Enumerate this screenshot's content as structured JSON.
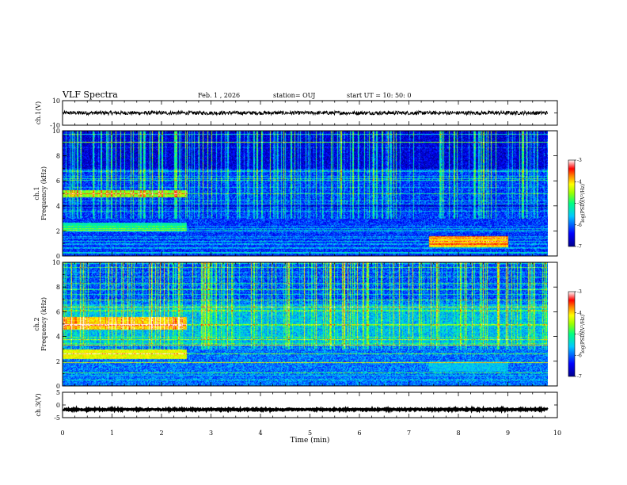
{
  "header": {
    "title": "VLF Spectra",
    "date": "Feb. 1 , 2026",
    "station": "station= OUJ",
    "start": "start UT = 10: 50: 0"
  },
  "colors": {
    "background": "#ffffff",
    "axis": "#000000",
    "trace": "#000000",
    "spectrogram_low": "#00008c",
    "spectrogram_high": "#ff0000"
  },
  "chart_data": [
    {
      "type": "line",
      "panel": "ch1-waveform",
      "ylabel": "ch.1(V)",
      "ylim": [
        -10,
        10
      ],
      "yticks": [
        {
          "value": 10,
          "label": "10"
        },
        {
          "value": 0,
          "label": ""
        },
        {
          "value": -10,
          "label": "-10"
        }
      ],
      "xlim": [
        0,
        10
      ],
      "series": [
        {
          "mean": 0,
          "amplitude": 1.5
        }
      ]
    },
    {
      "type": "heatmap",
      "panel": "ch1-spectrogram",
      "ylabel": [
        "ch.1",
        "Frequency (kHz)"
      ],
      "ylim": [
        0,
        10
      ],
      "yticks": [
        0,
        2,
        4,
        6,
        8,
        10
      ],
      "xlim": [
        0,
        10
      ],
      "xrange_data": [
        0,
        9.8
      ],
      "colorbar": {
        "label": "log(PSD)(V²/Hz)",
        "range": [
          -7,
          -3
        ],
        "ticks": [
          -3,
          -4,
          -5,
          -6,
          -7
        ]
      },
      "features": [
        {
          "freq": [
            4.7,
            5.3
          ],
          "time": [
            0,
            2.5
          ],
          "level": -4.6
        },
        {
          "freq": [
            2.0,
            2.7
          ],
          "time": [
            0,
            2.5
          ],
          "level": -5.2
        },
        {
          "freq": [
            0.7,
            1.6
          ],
          "time": [
            7.4,
            9.0
          ],
          "level": -4.0
        }
      ]
    },
    {
      "type": "heatmap",
      "panel": "ch2-spectrogram",
      "ylabel": [
        "ch.2",
        "Frequency (kHz)"
      ],
      "ylim": [
        0,
        10
      ],
      "yticks": [
        0,
        2,
        4,
        6,
        8,
        10
      ],
      "xlim": [
        0,
        10
      ],
      "xrange_data": [
        0,
        9.8
      ],
      "colorbar": {
        "label": "log(PSD)(V²/Hz)",
        "range": [
          -7,
          -3
        ],
        "ticks": [
          -3,
          -4,
          -5,
          -6,
          -7
        ]
      },
      "features": [
        {
          "freq": [
            4.6,
            5.6
          ],
          "time": [
            0,
            2.5
          ],
          "level": -4.0
        },
        {
          "freq": [
            2.2,
            3.0
          ],
          "time": [
            0,
            2.5
          ],
          "level": -4.2
        },
        {
          "freq": [
            1.2,
            2.0
          ],
          "time": [
            7.4,
            9.0
          ],
          "level": -5.6
        }
      ]
    },
    {
      "type": "line",
      "panel": "ch3-waveform",
      "ylabel": "ch.3(V)",
      "xlabel": "Time (min)",
      "ylim": [
        -5,
        5
      ],
      "yticks": [
        {
          "value": 5,
          "label": "5"
        },
        {
          "value": 0,
          "label": "0"
        },
        {
          "value": -5,
          "label": "-5"
        }
      ],
      "xlim": [
        0,
        10
      ],
      "xticks": [
        0,
        1,
        2,
        3,
        4,
        5,
        6,
        7,
        8,
        9,
        10
      ],
      "series": [
        {
          "mean": -1.8,
          "amplitude": 0.25
        }
      ]
    }
  ]
}
